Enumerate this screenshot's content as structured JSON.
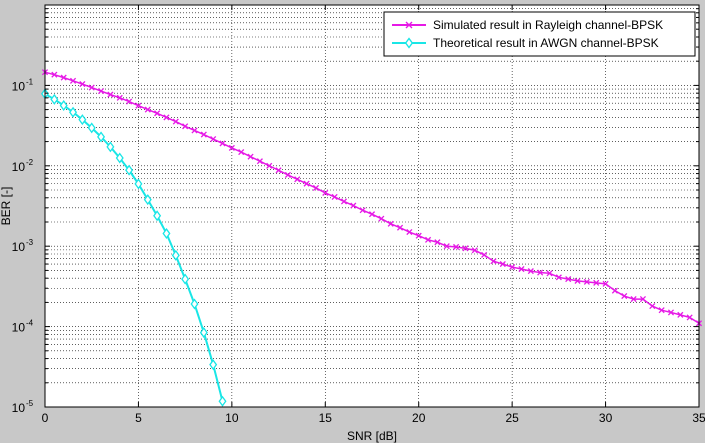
{
  "chart_data": {
    "type": "line",
    "title": "",
    "xlabel": "SNR [dB]",
    "ylabel": "BER [-]",
    "xlim": [
      0,
      35
    ],
    "ylim": [
      1e-05,
      1
    ],
    "yscale": "log",
    "grid": true,
    "legend_position": "top-right",
    "x_ticks": [
      0,
      5,
      10,
      15,
      20,
      25,
      30,
      35
    ],
    "x_tick_labels": [
      "0",
      "5",
      "10",
      "15",
      "20",
      "25",
      "30",
      "35"
    ],
    "y_ticks": [
      1e-05,
      0.0001,
      0.001,
      0.01,
      0.1
    ],
    "y_tick_labels": [
      {
        "base": "10",
        "exp": "-5"
      },
      {
        "base": "10",
        "exp": "-4"
      },
      {
        "base": "10",
        "exp": "-3"
      },
      {
        "base": "10",
        "exp": "-2"
      },
      {
        "base": "10",
        "exp": "-1"
      }
    ],
    "series": [
      {
        "name": "Simulated result in Rayleigh channel-BPSK",
        "color": "#e619e6",
        "marker": "x",
        "x": [
          0,
          0.5,
          1,
          1.5,
          2,
          2.5,
          3,
          3.5,
          4,
          4.5,
          5,
          5.5,
          6,
          6.5,
          7,
          7.5,
          8,
          8.5,
          9,
          9.5,
          10,
          10.5,
          11,
          11.5,
          12,
          12.5,
          13,
          13.5,
          14,
          14.5,
          15,
          15.5,
          16,
          16.5,
          17,
          17.5,
          18,
          18.5,
          19,
          19.5,
          20,
          20.5,
          21,
          21.5,
          22,
          22.5,
          23,
          23.5,
          24,
          24.5,
          25,
          25.5,
          26,
          26.5,
          27,
          27.5,
          28,
          28.5,
          29,
          29.5,
          30,
          30.5,
          31,
          31.5,
          32,
          32.5,
          33,
          33.5,
          34,
          34.5,
          35
        ],
        "y": [
          0.146,
          0.136,
          0.125,
          0.114,
          0.104,
          0.094,
          0.085,
          0.077,
          0.07,
          0.063,
          0.056,
          0.05,
          0.045,
          0.04,
          0.0355,
          0.031,
          0.0275,
          0.0245,
          0.0215,
          0.019,
          0.0167,
          0.0148,
          0.013,
          0.0114,
          0.01,
          0.0088,
          0.0077,
          0.0068,
          0.006,
          0.0053,
          0.0046,
          0.0041,
          0.0036,
          0.0032,
          0.0028,
          0.0025,
          0.0022,
          0.0019,
          0.0017,
          0.0015,
          0.00135,
          0.0012,
          0.00112,
          0.001,
          0.00098,
          0.00094,
          0.00089,
          0.00078,
          0.00065,
          0.0006,
          0.00055,
          0.00052,
          0.00049,
          0.00047,
          0.00046,
          0.00041,
          0.00039,
          0.00037,
          0.00036,
          0.00035,
          0.00034,
          0.00028,
          0.00024,
          0.00022,
          0.00022,
          0.00018,
          0.00016,
          0.00015,
          0.00014,
          0.00013,
          0.00011
        ]
      },
      {
        "name": "Theoretical result in AWGN channel-BPSK",
        "color": "#19e6e6",
        "marker": "diamond",
        "x": [
          0,
          0.5,
          1,
          1.5,
          2,
          2.5,
          3,
          3.5,
          4,
          4.5,
          5,
          5.5,
          6,
          6.5,
          7,
          7.5,
          8,
          8.5,
          9,
          9.5
        ],
        "y": [
          0.0786,
          0.0671,
          0.0563,
          0.0464,
          0.0375,
          0.0296,
          0.0229,
          0.0172,
          0.0125,
          0.00883,
          0.00595,
          0.0038,
          0.00239,
          0.00144,
          0.00077,
          0.00039,
          0.000191,
          8.43e-05,
          3.36e-05,
          1.18e-05
        ]
      }
    ]
  }
}
